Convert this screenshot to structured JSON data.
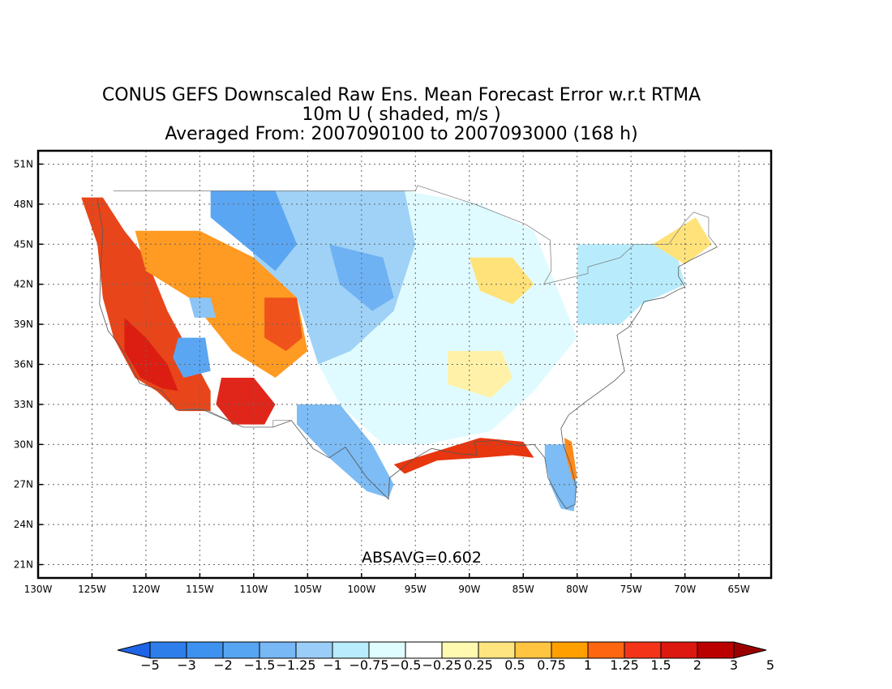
{
  "title": {
    "line1": "CONUS GEFS Downscaled Raw Ens. Mean Forecast Error w.r.t RTMA",
    "line2": "10m U ( shaded, m/s )",
    "line3": "Averaged From: 2007090100 to 2007093000 (168 h)"
  },
  "annotation": "ABSAVG=0.602",
  "map": {
    "lon_range": [
      -130,
      -62
    ],
    "lat_range": [
      20,
      52
    ],
    "lon_ticks": [
      {
        "value": -130,
        "label": "130W"
      },
      {
        "value": -125,
        "label": "125W"
      },
      {
        "value": -120,
        "label": "120W"
      },
      {
        "value": -115,
        "label": "115W"
      },
      {
        "value": -110,
        "label": "110W"
      },
      {
        "value": -105,
        "label": "105W"
      },
      {
        "value": -100,
        "label": "100W"
      },
      {
        "value": -95,
        "label": "95W"
      },
      {
        "value": -90,
        "label": "90W"
      },
      {
        "value": -85,
        "label": "85W"
      },
      {
        "value": -80,
        "label": "80W"
      },
      {
        "value": -75,
        "label": "75W"
      },
      {
        "value": -70,
        "label": "70W"
      },
      {
        "value": -65,
        "label": "65W"
      }
    ],
    "lat_ticks": [
      {
        "value": 21,
        "label": "21N"
      },
      {
        "value": 24,
        "label": "24N"
      },
      {
        "value": 27,
        "label": "27N"
      },
      {
        "value": 30,
        "label": "30N"
      },
      {
        "value": 33,
        "label": "33N"
      },
      {
        "value": 36,
        "label": "36N"
      },
      {
        "value": 39,
        "label": "39N"
      },
      {
        "value": 42,
        "label": "42N"
      },
      {
        "value": 45,
        "label": "45N"
      },
      {
        "value": 48,
        "label": "48N"
      },
      {
        "value": 51,
        "label": "51N"
      }
    ],
    "grid": true,
    "regions": [
      {
        "name": "west-coast",
        "color": "#e8461a",
        "poly": [
          [
            -126,
            48.5
          ],
          [
            -124,
            48.5
          ],
          [
            -122,
            46
          ],
          [
            -120,
            44
          ],
          [
            -118,
            40
          ],
          [
            -116,
            37
          ],
          [
            -114,
            34
          ],
          [
            -114,
            32.5
          ],
          [
            -117,
            32.5
          ],
          [
            -119,
            34
          ],
          [
            -121,
            35
          ],
          [
            -123,
            38
          ],
          [
            -124,
            41
          ],
          [
            -124.5,
            45
          ],
          [
            -126,
            48.5
          ]
        ]
      },
      {
        "name": "california-core",
        "color": "#dc1e12",
        "poly": [
          [
            -122,
            39.5
          ],
          [
            -120,
            38
          ],
          [
            -118,
            36
          ],
          [
            -117,
            34
          ],
          [
            -118.5,
            34.2
          ],
          [
            -120.5,
            35
          ],
          [
            -122,
            37
          ]
        ]
      },
      {
        "name": "arizona-hot",
        "color": "#e0261a",
        "poly": [
          [
            -113,
            35
          ],
          [
            -110,
            35
          ],
          [
            -108,
            33
          ],
          [
            -109,
            31.5
          ],
          [
            -112,
            31.5
          ],
          [
            -113.5,
            33
          ]
        ]
      },
      {
        "name": "interior-west",
        "color": "#ff9a22",
        "poly": [
          [
            -121,
            46
          ],
          [
            -115,
            46
          ],
          [
            -110,
            44
          ],
          [
            -106,
            41
          ],
          [
            -105,
            37
          ],
          [
            -108,
            35
          ],
          [
            -112,
            37
          ],
          [
            -116,
            41
          ],
          [
            -120,
            43
          ]
        ]
      },
      {
        "name": "colorado-red",
        "color": "#f0521c",
        "poly": [
          [
            -109,
            41
          ],
          [
            -106,
            41
          ],
          [
            -105.5,
            38
          ],
          [
            -107,
            37
          ],
          [
            -109,
            38
          ]
        ]
      },
      {
        "name": "nevada-blue",
        "color": "#5aa6f2",
        "poly": [
          [
            -117,
            38
          ],
          [
            -114.5,
            38
          ],
          [
            -114,
            35.5
          ],
          [
            -116.5,
            35
          ],
          [
            -117.5,
            36.5
          ]
        ]
      },
      {
        "name": "utah-blue",
        "color": "#8cc4f5",
        "poly": [
          [
            -116,
            41
          ],
          [
            -114,
            41
          ],
          [
            -113.5,
            39.5
          ],
          [
            -115.5,
            39.5
          ]
        ]
      },
      {
        "name": "northern-plains",
        "color": "#9fd2f6",
        "poly": [
          [
            -110,
            49
          ],
          [
            -96,
            49
          ],
          [
            -95,
            45
          ],
          [
            -97,
            40
          ],
          [
            -101,
            37
          ],
          [
            -104,
            36
          ],
          [
            -106,
            41
          ],
          [
            -110,
            44
          ]
        ]
      },
      {
        "name": "montana-blue",
        "color": "#5aa6f2",
        "poly": [
          [
            -114,
            49
          ],
          [
            -108,
            49
          ],
          [
            -106,
            45
          ],
          [
            -108,
            43
          ],
          [
            -111,
            45
          ],
          [
            -114,
            47
          ]
        ]
      },
      {
        "name": "dakota-blue",
        "color": "#6fb2f4",
        "poly": [
          [
            -103,
            45
          ],
          [
            -98,
            44
          ],
          [
            -97,
            41
          ],
          [
            -99,
            40
          ],
          [
            -102,
            42
          ]
        ]
      },
      {
        "name": "central-plains",
        "color": "#e0fbff",
        "poly": [
          [
            -96,
            49
          ],
          [
            -89,
            48
          ],
          [
            -84,
            46
          ],
          [
            -82,
            42
          ],
          [
            -80,
            38
          ],
          [
            -84,
            34
          ],
          [
            -88,
            31
          ],
          [
            -94,
            30
          ],
          [
            -98,
            30
          ],
          [
            -102,
            33
          ],
          [
            -104,
            36
          ],
          [
            -101,
            37
          ],
          [
            -97,
            40
          ],
          [
            -95,
            45
          ]
        ]
      },
      {
        "name": "texas-blue",
        "color": "#7dbcf4",
        "poly": [
          [
            -106,
            33
          ],
          [
            -102,
            33
          ],
          [
            -99,
            30
          ],
          [
            -97,
            27
          ],
          [
            -97.5,
            26
          ],
          [
            -99.5,
            26.5
          ],
          [
            -103,
            29
          ],
          [
            -106,
            31.5
          ]
        ]
      },
      {
        "name": "great-lakes-yellow",
        "color": "#ffe27a",
        "poly": [
          [
            -90,
            44
          ],
          [
            -86,
            44
          ],
          [
            -84,
            42
          ],
          [
            -86,
            40.5
          ],
          [
            -89,
            41.5
          ]
        ]
      },
      {
        "name": "midsouth-yellow",
        "color": "#fff2a8",
        "poly": [
          [
            -92,
            37
          ],
          [
            -87,
            37
          ],
          [
            -86,
            35
          ],
          [
            -88,
            33.5
          ],
          [
            -92,
            34.5
          ]
        ]
      },
      {
        "name": "northeast-blue",
        "color": "#b8ecfd",
        "poly": [
          [
            -80,
            45
          ],
          [
            -71,
            45
          ],
          [
            -70,
            42
          ],
          [
            -74,
            40.5
          ],
          [
            -76,
            39
          ],
          [
            -80,
            39
          ]
        ]
      },
      {
        "name": "maine-yellow",
        "color": "#ffe27a",
        "poly": [
          [
            -73,
            45
          ],
          [
            -69,
            47
          ],
          [
            -67.5,
            45
          ],
          [
            -70,
            43.5
          ]
        ]
      },
      {
        "name": "gulf-coast-red",
        "color": "#e8360f",
        "poly": [
          [
            -97,
            28.5
          ],
          [
            -93,
            29.5
          ],
          [
            -89,
            30.5
          ],
          [
            -85,
            30.2
          ],
          [
            -84,
            29
          ],
          [
            -86,
            29.2
          ],
          [
            -89,
            29
          ],
          [
            -93,
            28.8
          ],
          [
            -96,
            27.8
          ]
        ]
      },
      {
        "name": "florida-blue",
        "color": "#7dbcf4",
        "poly": [
          [
            -83,
            30
          ],
          [
            -81,
            30
          ],
          [
            -80,
            27
          ],
          [
            -80.3,
            25
          ],
          [
            -81.5,
            25.2
          ],
          [
            -82.5,
            27
          ],
          [
            -83,
            29
          ]
        ]
      },
      {
        "name": "florida-east-orange",
        "color": "#ff8a1c",
        "poly": [
          [
            -81.2,
            30.5
          ],
          [
            -80.5,
            30.2
          ],
          [
            -80,
            27.5
          ],
          [
            -80.4,
            27.3
          ],
          [
            -81,
            29
          ]
        ]
      }
    ],
    "coast": [
      [
        -124.5,
        48.4
      ],
      [
        -124,
        46
      ],
      [
        -124.2,
        43
      ],
      [
        -124.3,
        40.5
      ],
      [
        -123.5,
        38.5
      ],
      [
        -122.5,
        37.5
      ],
      [
        -121.8,
        36.5
      ],
      [
        -120.6,
        34.6
      ],
      [
        -118.5,
        34
      ],
      [
        -117.2,
        32.6
      ],
      [
        -114.7,
        32.6
      ],
      [
        -111,
        31.3
      ],
      [
        -108.2,
        31.3
      ],
      [
        -106.5,
        31.8
      ],
      [
        -104.5,
        29.7
      ],
      [
        -103,
        29
      ],
      [
        -101.5,
        29.8
      ],
      [
        -99.5,
        27.5
      ],
      [
        -97.5,
        25.9
      ],
      [
        -97.4,
        27.5
      ],
      [
        -95,
        29
      ],
      [
        -93.5,
        29.7
      ],
      [
        -91,
        29.3
      ],
      [
        -89.3,
        29.2
      ],
      [
        -89.5,
        30.2
      ],
      [
        -87.5,
        30.3
      ],
      [
        -85.5,
        29.9
      ],
      [
        -84,
        30
      ],
      [
        -83,
        29
      ],
      [
        -82.7,
        27.5
      ],
      [
        -81.7,
        26
      ],
      [
        -81,
        25.2
      ],
      [
        -80.2,
        25.5
      ],
      [
        -80.1,
        26.8
      ],
      [
        -80.6,
        28.5
      ],
      [
        -81.3,
        30
      ],
      [
        -81.5,
        31.2
      ],
      [
        -80.8,
        32.2
      ],
      [
        -79.2,
        33.2
      ],
      [
        -78,
        33.9
      ],
      [
        -76.5,
        34.8
      ],
      [
        -75.6,
        35.5
      ],
      [
        -76,
        37
      ],
      [
        -76.3,
        38.2
      ],
      [
        -75.2,
        38.8
      ],
      [
        -74.2,
        40
      ],
      [
        -73.8,
        40.7
      ],
      [
        -72,
        41
      ],
      [
        -70.6,
        41.6
      ],
      [
        -70,
        41.8
      ],
      [
        -70.6,
        42.6
      ],
      [
        -70.6,
        43.3
      ],
      [
        -69.5,
        43.8
      ],
      [
        -68,
        44.4
      ],
      [
        -67,
        44.8
      ]
    ],
    "borders": [
      [
        [
          -123,
          49
        ],
        [
          -95,
          49
        ],
        [
          -94.8,
          49.4
        ],
        [
          -89.5,
          48
        ],
        [
          -84.8,
          46.5
        ],
        [
          -82.5,
          45.3
        ],
        [
          -82.4,
          43
        ],
        [
          -83.1,
          42
        ],
        [
          -79,
          42.8
        ],
        [
          -79,
          43.3
        ],
        [
          -76,
          44
        ],
        [
          -74.7,
          45
        ],
        [
          -71.5,
          45
        ],
        [
          -70,
          46.7
        ],
        [
          -69.2,
          47.4
        ],
        [
          -67.8,
          47
        ],
        [
          -67.8,
          45.6
        ],
        [
          -67,
          44.8
        ]
      ],
      [
        [
          -117.1,
          32.6
        ],
        [
          -114.7,
          32.7
        ],
        [
          -111,
          31.3
        ],
        [
          -108.2,
          31.3
        ],
        [
          -108.2,
          31.8
        ],
        [
          -106.5,
          31.8
        ]
      ]
    ]
  },
  "colorbar": {
    "colors": [
      "#1e64e6",
      "#2d7eea",
      "#3d92f0",
      "#55a5f2",
      "#77b8f5",
      "#9acef8",
      "#b9ecfd",
      "#dffdff",
      "#ffffff",
      "#fffab0",
      "#ffe580",
      "#ffc440",
      "#ffa000",
      "#ff6610",
      "#f43418",
      "#dc1810",
      "#bb0000",
      "#9b0000"
    ],
    "labels": [
      "-5",
      "-3",
      "-2",
      "-1.5",
      "-1.25",
      "-1",
      "-0.75",
      "-0.5",
      "-0.25",
      "0.25",
      "0.5",
      "0.75",
      "1",
      "1.25",
      "1.5",
      "2",
      "3",
      "5"
    ]
  }
}
